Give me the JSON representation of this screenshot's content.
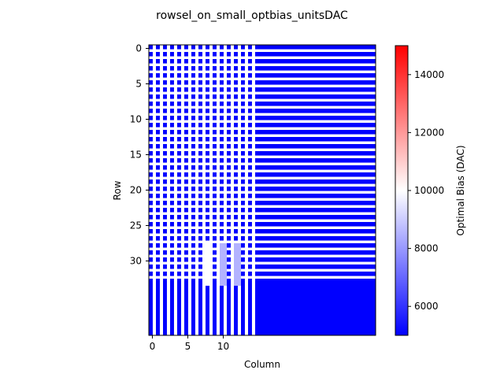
{
  "chart_data": {
    "type": "heatmap",
    "title": "rowsel_on_small_optbias_unitsDAC",
    "xlabel": "Column",
    "ylabel": "Row",
    "x_ticks": [
      0,
      5,
      10
    ],
    "y_ticks": [
      0,
      5,
      10,
      15,
      20,
      25,
      30
    ],
    "xlim": [
      -0.5,
      31.5
    ],
    "ylim": [
      -0.5,
      40.5
    ],
    "colorbar": {
      "label": "Optimal Bias (DAC)",
      "colormap": "bwr",
      "vmin": 5000,
      "vmax": 15000,
      "ticks": [
        6000,
        8000,
        10000,
        12000,
        14000
      ],
      "tick_labels": [
        "6000",
        "8000",
        "10000",
        "12000",
        "14000"
      ]
    },
    "grid": false,
    "description_values": {
      "background_value": 5000,
      "gap_value": 10000,
      "pixel_value": 5000,
      "pixel_rows": 33,
      "pixel_columns": 15,
      "bar_columns": [
        8,
        10,
        12
      ],
      "bar_values": [
        10000,
        8500,
        8500
      ],
      "bar_row_range": [
        28,
        33
      ]
    }
  },
  "colors": {
    "low": "#0000ff",
    "mid": "#ffffff",
    "high": "#ff0000",
    "axis": "#000000"
  }
}
